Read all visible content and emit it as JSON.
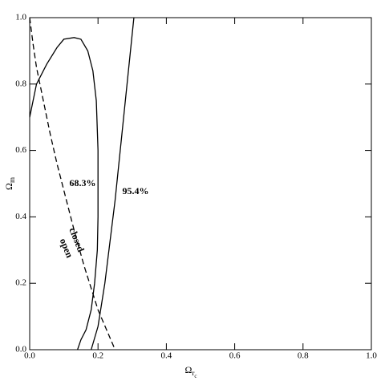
{
  "chart_data": {
    "type": "line",
    "xlabel": {
      "text": "Ω",
      "sub": "r",
      "subsub": "c"
    },
    "ylabel": {
      "text": "Ω",
      "sub": "m"
    },
    "xlim": [
      0,
      1
    ],
    "ylim": [
      0,
      1
    ],
    "xticks": [
      {
        "value": 0,
        "label": "0.0"
      },
      0.2,
      0.4,
      0.6,
      0.8,
      {
        "value": 1,
        "label": "1.0"
      }
    ],
    "yticks": [
      {
        "value": 0,
        "label": "0.0"
      },
      0.2,
      0.4,
      0.6,
      0.8,
      {
        "value": 1,
        "label": "1.0"
      }
    ],
    "series": [
      {
        "name": "68.3%",
        "color": "#000000",
        "dashed": false,
        "x": [
          0,
          0.02,
          0.05,
          0.08,
          0.1,
          0.13,
          0.15,
          0.17,
          0.185,
          0.195,
          0.2,
          0.2,
          0.198,
          0.19,
          0.18,
          0.165,
          0.15,
          0.14
        ],
        "values": [
          0.7,
          0.8,
          0.86,
          0.91,
          0.935,
          0.94,
          0.935,
          0.9,
          0.84,
          0.75,
          0.6,
          0.4,
          0.3,
          0.2,
          0.12,
          0.06,
          0.03,
          0
        ]
      },
      {
        "name": "95.4%",
        "color": "#000000",
        "dashed": false,
        "x": [
          0.18,
          0.2,
          0.22,
          0.25,
          0.27,
          0.29,
          0.305
        ],
        "values": [
          0,
          0.07,
          0.2,
          0.45,
          0.65,
          0.85,
          1.0
        ]
      },
      {
        "color": "#000000",
        "dashed": true,
        "x": [
          0,
          0.01,
          0.02,
          0.04,
          0.06,
          0.08,
          0.1,
          0.13,
          0.16,
          0.2,
          0.25
        ],
        "values": [
          1.0,
          0.92,
          0.85,
          0.75,
          0.65,
          0.56,
          0.48,
          0.36,
          0.25,
          0.12,
          0
        ]
      }
    ],
    "annotations": [
      {
        "text": "68.3%",
        "x": 0.155,
        "y": 0.5
      },
      {
        "text": "95.4%",
        "x": 0.31,
        "y": 0.475
      },
      {
        "text": "closed",
        "x": 0.135,
        "y": 0.33,
        "angle": 68
      },
      {
        "text": "open",
        "x": 0.105,
        "y": 0.305,
        "angle": 68
      }
    ]
  }
}
